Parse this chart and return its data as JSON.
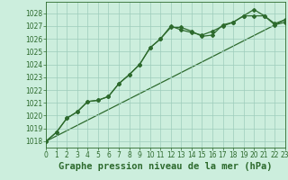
{
  "line1_x": [
    0,
    1,
    2,
    3,
    4,
    5,
    6,
    7,
    8,
    9,
    10,
    11,
    12,
    13,
    14,
    15,
    16,
    17,
    18,
    19,
    20,
    21,
    22,
    23
  ],
  "line1_y": [
    1018.0,
    1018.7,
    1019.8,
    1020.3,
    1021.1,
    1021.2,
    1021.5,
    1022.5,
    1023.2,
    1024.0,
    1025.3,
    1026.0,
    1026.9,
    1026.9,
    1026.6,
    1026.2,
    1026.3,
    1027.1,
    1027.3,
    1027.8,
    1028.3,
    1027.8,
    1027.1,
    1027.3
  ],
  "line2_x": [
    0,
    1,
    2,
    3,
    4,
    5,
    6,
    7,
    8,
    9,
    10,
    11,
    12,
    13,
    14,
    15,
    16,
    17,
    18,
    19,
    20,
    21,
    22,
    23
  ],
  "line2_y": [
    1018.0,
    1018.7,
    1019.8,
    1020.3,
    1021.1,
    1021.2,
    1021.5,
    1022.5,
    1023.2,
    1024.0,
    1025.3,
    1026.0,
    1027.0,
    1026.7,
    1026.5,
    1026.3,
    1026.6,
    1027.0,
    1027.3,
    1027.8,
    1027.8,
    1027.8,
    1027.2,
    1027.5
  ],
  "line3_x": [
    0,
    23
  ],
  "line3_y": [
    1018.0,
    1027.5
  ],
  "line_color": "#2d6a2d",
  "bg_color": "#cceedd",
  "grid_color": "#9dccbb",
  "title": "Graphe pression niveau de la mer (hPa)",
  "ylim_min": 1017.5,
  "ylim_max": 1028.9,
  "xlim_min": 0,
  "xlim_max": 23,
  "yticks": [
    1018,
    1019,
    1020,
    1021,
    1022,
    1023,
    1024,
    1025,
    1026,
    1027,
    1028
  ],
  "xticks": [
    0,
    1,
    2,
    3,
    4,
    5,
    6,
    7,
    8,
    9,
    10,
    11,
    12,
    13,
    14,
    15,
    16,
    17,
    18,
    19,
    20,
    21,
    22,
    23
  ],
  "title_fontsize": 7.5,
  "tick_fontsize": 5.5,
  "marker": "D",
  "marker_size": 2.0,
  "line_width": 0.9
}
